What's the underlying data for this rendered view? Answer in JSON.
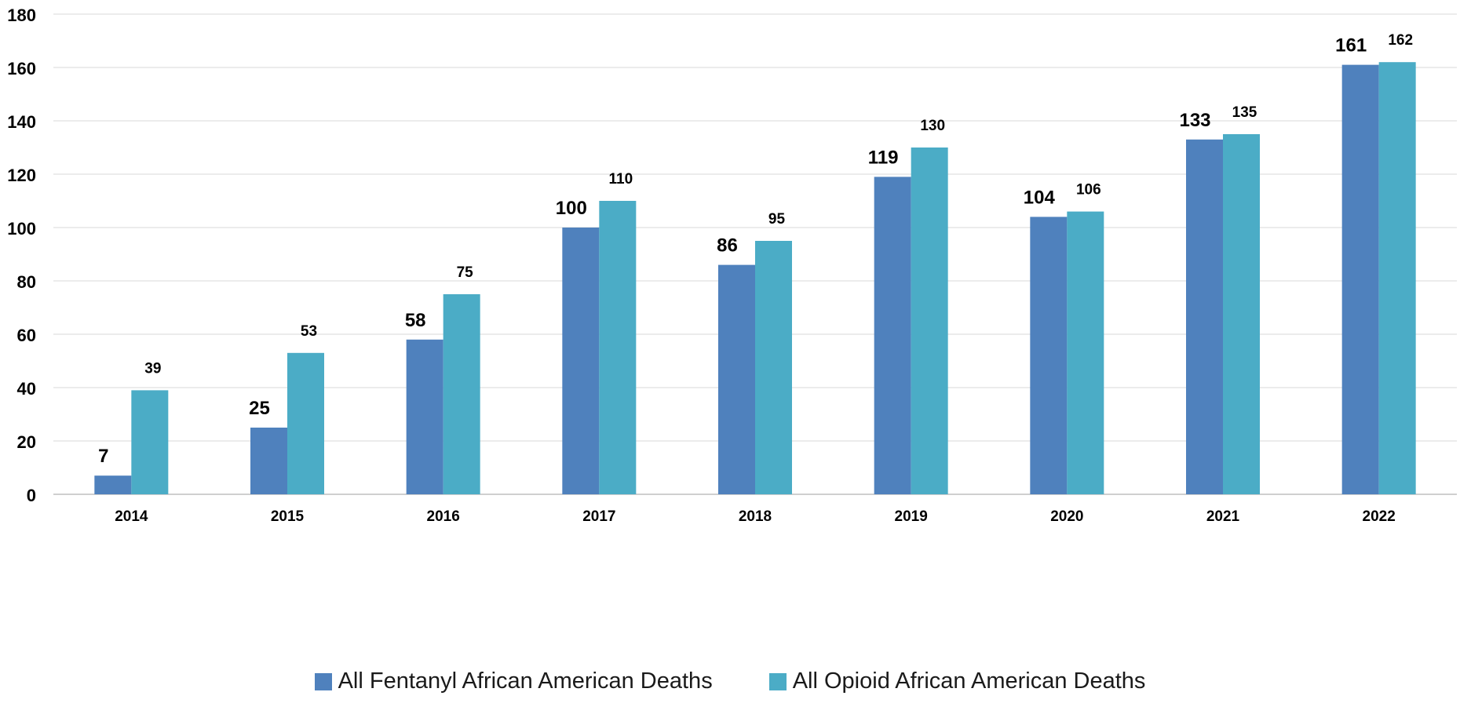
{
  "chart_data": {
    "type": "bar",
    "title": "",
    "xlabel": "",
    "ylabel": "",
    "categories": [
      "2014",
      "2015",
      "2016",
      "2017",
      "2018",
      "2019",
      "2020",
      "2021",
      "2022"
    ],
    "series": [
      {
        "name": "All Fentanyl African American Deaths",
        "color": "#4f81bd",
        "values": [
          7,
          25,
          58,
          100,
          86,
          119,
          104,
          133,
          161
        ]
      },
      {
        "name": "All Opioid African American Deaths",
        "color": "#4bacc6",
        "values": [
          39,
          53,
          75,
          110,
          95,
          130,
          106,
          135,
          162
        ]
      }
    ],
    "ylim": [
      0,
      180
    ],
    "yticks": [
      0,
      20,
      40,
      60,
      80,
      100,
      120,
      140,
      160,
      180
    ],
    "grid": true,
    "legend_position": "bottom"
  },
  "legend": {
    "items": [
      {
        "label": "All Fentanyl African American Deaths",
        "color": "#4f81bd"
      },
      {
        "label": "All Opioid African American Deaths",
        "color": "#4bacc6"
      }
    ]
  }
}
